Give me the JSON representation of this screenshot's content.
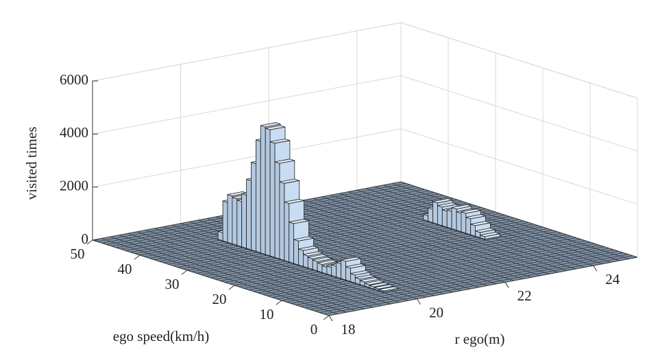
{
  "chart_data": {
    "type": "bar3d",
    "zlabel": "visited times",
    "xlabel": "ego speed(km/h)",
    "ylabel": "r ego(m)",
    "x": [
      40,
      39,
      38,
      37,
      36,
      35,
      34,
      33,
      32,
      31,
      30,
      29,
      28,
      27,
      26,
      25,
      24,
      23,
      22,
      21,
      20,
      19,
      18,
      17,
      16,
      15,
      14,
      13,
      12,
      11,
      10,
      9,
      8,
      7,
      6,
      32,
      31,
      30,
      29,
      28,
      27,
      26,
      25,
      24,
      23,
      22,
      21,
      20
    ],
    "y": [
      20,
      20,
      20,
      20,
      20,
      20,
      20,
      20,
      20,
      20,
      20,
      20,
      20,
      20,
      20,
      20,
      20,
      20,
      20,
      20,
      20,
      20,
      20,
      20,
      20,
      20,
      20,
      20,
      20,
      20,
      20,
      20,
      20,
      20,
      20,
      23.8,
      23.8,
      23.8,
      23.8,
      23.8,
      23.8,
      23.8,
      23.8,
      23.8,
      23.8,
      23.8,
      23.8,
      23.8
    ],
    "values": [
      300,
      1500,
      1800,
      1750,
      1700,
      2000,
      2600,
      3300,
      4200,
      4800,
      4750,
      4300,
      3600,
      2900,
      2200,
      1500,
      900,
      600,
      450,
      400,
      350,
      300,
      250,
      300,
      400,
      550,
      700,
      500,
      300,
      200,
      150,
      100,
      80,
      60,
      40,
      200,
      500,
      800,
      700,
      600,
      650,
      800,
      700,
      750,
      600,
      400,
      200,
      100
    ],
    "color": "#c9ddf2",
    "xlim": [
      0,
      50
    ],
    "xticks": [
      0,
      10,
      20,
      30,
      40,
      50
    ],
    "ylim": [
      18,
      25
    ],
    "yticks": [
      18,
      20,
      22,
      24
    ],
    "zlim": [
      0,
      6000
    ],
    "zticks": [
      0,
      2000,
      4000,
      6000
    ],
    "grid": true
  }
}
